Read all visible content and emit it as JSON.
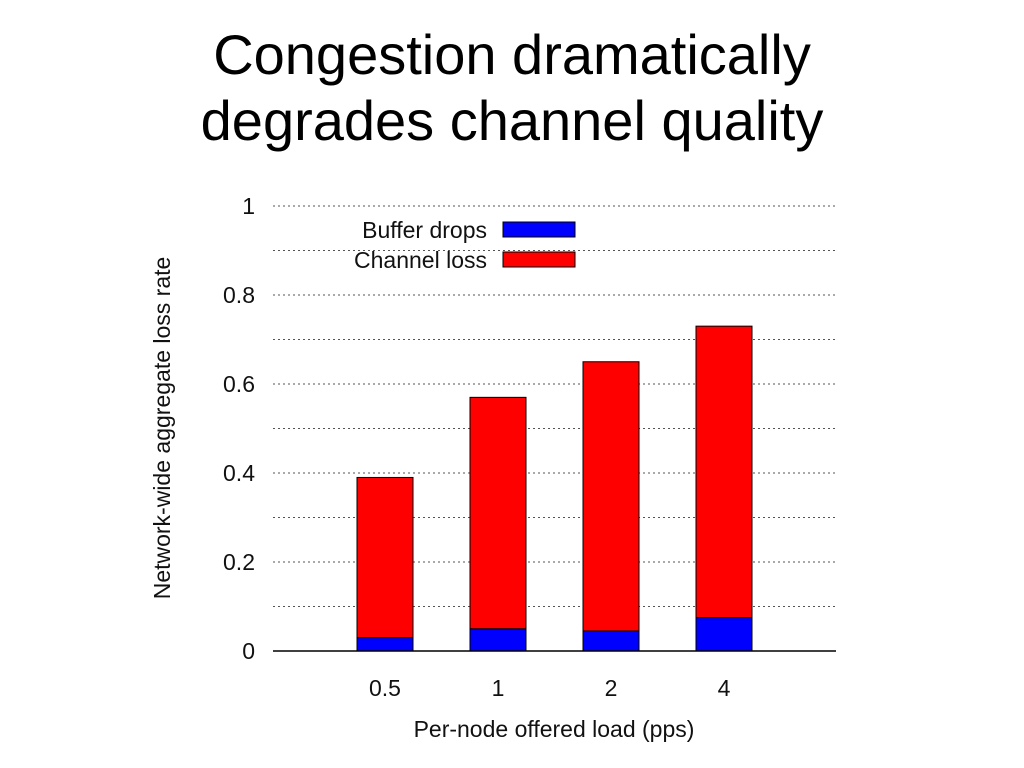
{
  "slide": {
    "title_line1": "Congestion dramatically",
    "title_line2": "degrades channel quality"
  },
  "chart_data": {
    "type": "bar",
    "stacked": true,
    "categories": [
      "0.5",
      "1",
      "2",
      "4"
    ],
    "series": [
      {
        "name": "Buffer drops",
        "color": "#0000ff",
        "values": [
          0.03,
          0.05,
          0.045,
          0.075
        ]
      },
      {
        "name": "Channel loss",
        "color": "#ff0000",
        "values": [
          0.36,
          0.52,
          0.605,
          0.655
        ]
      }
    ],
    "totals": [
      0.39,
      0.57,
      0.65,
      0.73
    ],
    "xlabel": "Per-node offered load (pps)",
    "ylabel": "Network-wide aggregate loss rate",
    "ylim": [
      0,
      1
    ],
    "yticks": [
      "0",
      "0.2",
      "0.4",
      "0.6",
      "0.8",
      "1"
    ],
    "grid": true,
    "legend_position": "top-left"
  }
}
